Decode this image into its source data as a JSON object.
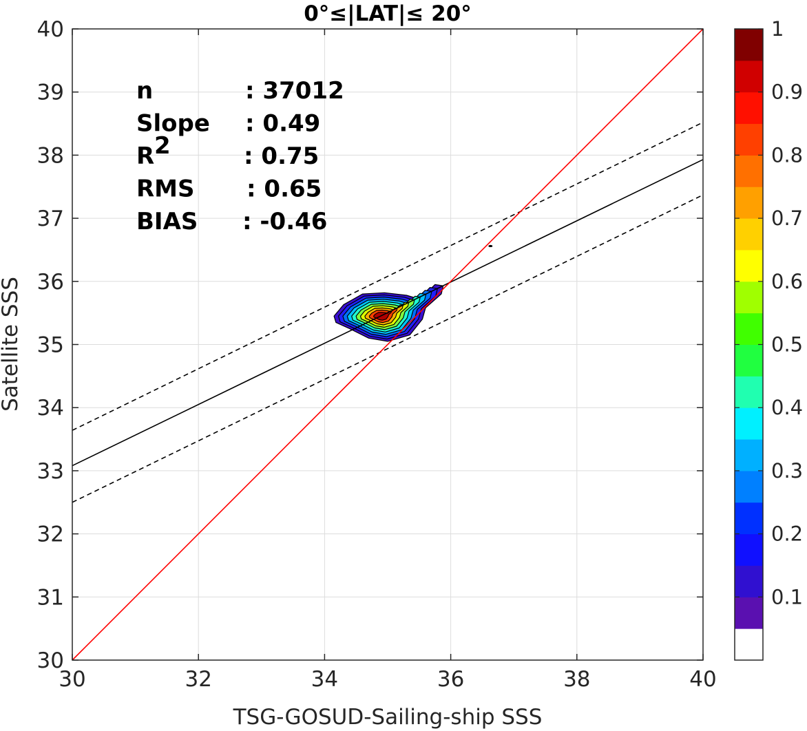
{
  "chart_data": {
    "type": "contour-density-scatter",
    "title": "0°≤|LAT|≤ 20°",
    "xlabel": "TSG-GOSUD-Sailing-ship SSS",
    "ylabel": "Satellite SSS",
    "xlim": [
      30,
      40
    ],
    "ylim": [
      30,
      40
    ],
    "xticks": [
      "30",
      "32",
      "34",
      "36",
      "38",
      "40"
    ],
    "yticks": [
      "30",
      "31",
      "32",
      "33",
      "34",
      "35",
      "36",
      "37",
      "38",
      "39",
      "40"
    ],
    "grid": true,
    "stats": [
      {
        "label": "n",
        "value": ": 37012"
      },
      {
        "label": "Slope",
        "value": ": 0.49"
      },
      {
        "label": "R",
        "sup": "2",
        "value": ": 0.75"
      },
      {
        "label": "RMS",
        "value": ": 0.65"
      },
      {
        "label": "BIAS",
        "value": ": -0.46"
      }
    ],
    "lines": {
      "identity": {
        "x": [
          30,
          40
        ],
        "y": [
          30,
          40
        ],
        "color": "#ff0000"
      },
      "fit": {
        "x": [
          30,
          40
        ],
        "y": [
          33.08,
          37.93
        ],
        "color": "#000000"
      },
      "fit_upper": {
        "x": [
          30,
          40
        ],
        "y": [
          33.64,
          38.52
        ],
        "color": "#000000",
        "dash": true
      },
      "fit_lower": {
        "x": [
          30,
          40
        ],
        "y": [
          32.5,
          37.37
        ],
        "color": "#000000",
        "dash": true
      }
    },
    "density_contours": {
      "center": [
        34.9,
        35.45
      ],
      "levels": [
        0.05,
        0.15,
        0.25,
        0.35,
        0.45,
        0.55,
        0.65,
        0.75,
        0.85,
        0.95
      ],
      "colors": [
        "#3a0fd0",
        "#2020ff",
        "#0070ff",
        "#00c4ff",
        "#20ffd0",
        "#80ff40",
        "#e0ff00",
        "#ffb000",
        "#ff4000",
        "#b00000"
      ],
      "outer_shape": [
        [
          34.15,
          35.45
        ],
        [
          34.3,
          35.63
        ],
        [
          34.6,
          35.8
        ],
        [
          34.95,
          35.82
        ],
        [
          35.3,
          35.78
        ],
        [
          35.5,
          35.72
        ],
        [
          35.65,
          35.85
        ],
        [
          35.75,
          35.95
        ],
        [
          35.88,
          35.93
        ],
        [
          35.85,
          35.8
        ],
        [
          35.6,
          35.58
        ],
        [
          35.55,
          35.4
        ],
        [
          35.35,
          35.15
        ],
        [
          35.0,
          35.05
        ],
        [
          34.7,
          35.1
        ],
        [
          34.4,
          35.25
        ],
        [
          34.18,
          35.35
        ]
      ]
    },
    "colorbar": {
      "ticks": [
        "0.1",
        "0.2",
        "0.3",
        "0.4",
        "0.5",
        "0.6",
        "0.7",
        "0.8",
        "0.9",
        "1"
      ],
      "tick_values": [
        0.1,
        0.2,
        0.3,
        0.4,
        0.5,
        0.6,
        0.7,
        0.8,
        0.9,
        1.0
      ],
      "bands": [
        "#ffffff",
        "#5a10b0",
        "#3010d0",
        "#1010ff",
        "#0030ff",
        "#0080ff",
        "#00b0ff",
        "#00f0ff",
        "#20ffb0",
        "#20ff40",
        "#40ff00",
        "#a0ff00",
        "#ffff00",
        "#ffd000",
        "#ffa000",
        "#ff7000",
        "#ff4000",
        "#ff1000",
        "#d00000",
        "#800000"
      ]
    }
  }
}
